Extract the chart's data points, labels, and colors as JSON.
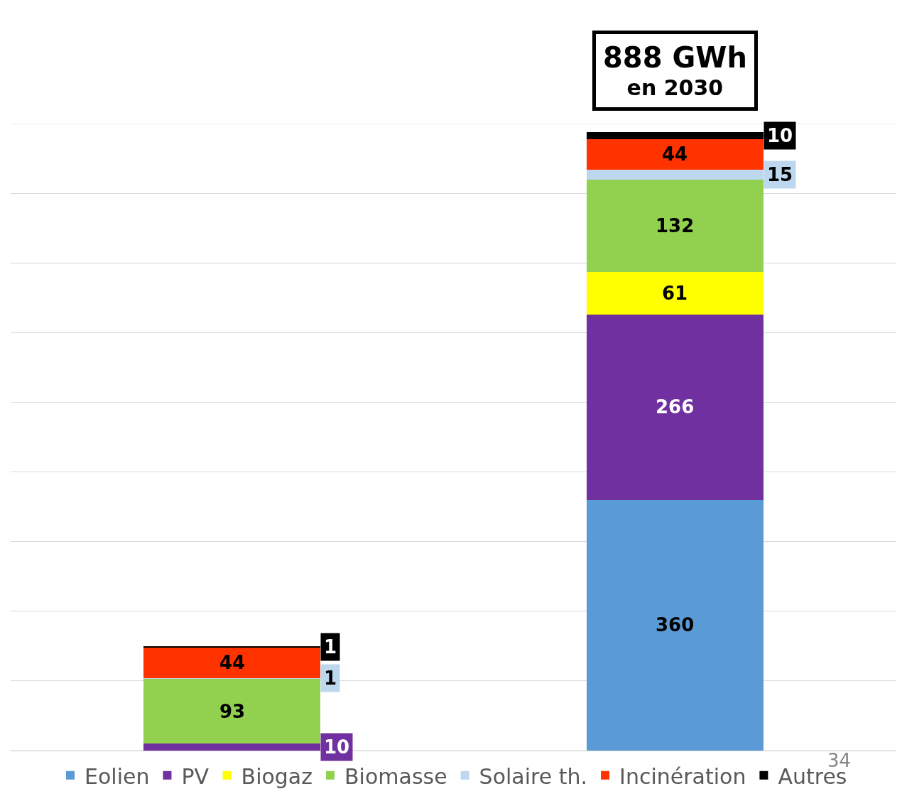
{
  "chart_data": {
    "type": "bar",
    "stacked": true,
    "categories": [
      null,
      null
    ],
    "series": [
      {
        "name": "Eolien",
        "color": "#5b9bd5",
        "values": [
          null,
          360
        ]
      },
      {
        "name": "PV",
        "color": "#7030a0",
        "values": [
          10,
          266
        ]
      },
      {
        "name": "Biogaz",
        "color": "#ffff00",
        "values": [
          null,
          61
        ]
      },
      {
        "name": "Biomasse",
        "color": "#92d050",
        "values": [
          93,
          132
        ]
      },
      {
        "name": "Solaire th.",
        "color": "#bdd7ee",
        "values": [
          1,
          15
        ]
      },
      {
        "name": "Incinération",
        "color": "#ff3300",
        "values": [
          44,
          44
        ]
      },
      {
        "name": "Autres",
        "color": "#000000",
        "values": [
          1,
          10
        ]
      }
    ],
    "data_labels": true,
    "ylim": [
      0,
      900
    ],
    "yticks": [
      {
        "value": 0,
        "label": null
      },
      {
        "value": 100,
        "label": null
      },
      {
        "value": 200,
        "label": null
      },
      {
        "value": 300,
        "label": null
      },
      {
        "value": 400,
        "label": null
      },
      {
        "value": 500,
        "label": null
      },
      {
        "value": 600,
        "label": null
      },
      {
        "value": 700,
        "label": null
      },
      {
        "value": 800,
        "label": null
      },
      {
        "value": 900,
        "label": null
      }
    ],
    "grid": "y",
    "legend": "bottom",
    "annotations": [
      "888 GWh\nen 2030",
      "34"
    ]
  }
}
